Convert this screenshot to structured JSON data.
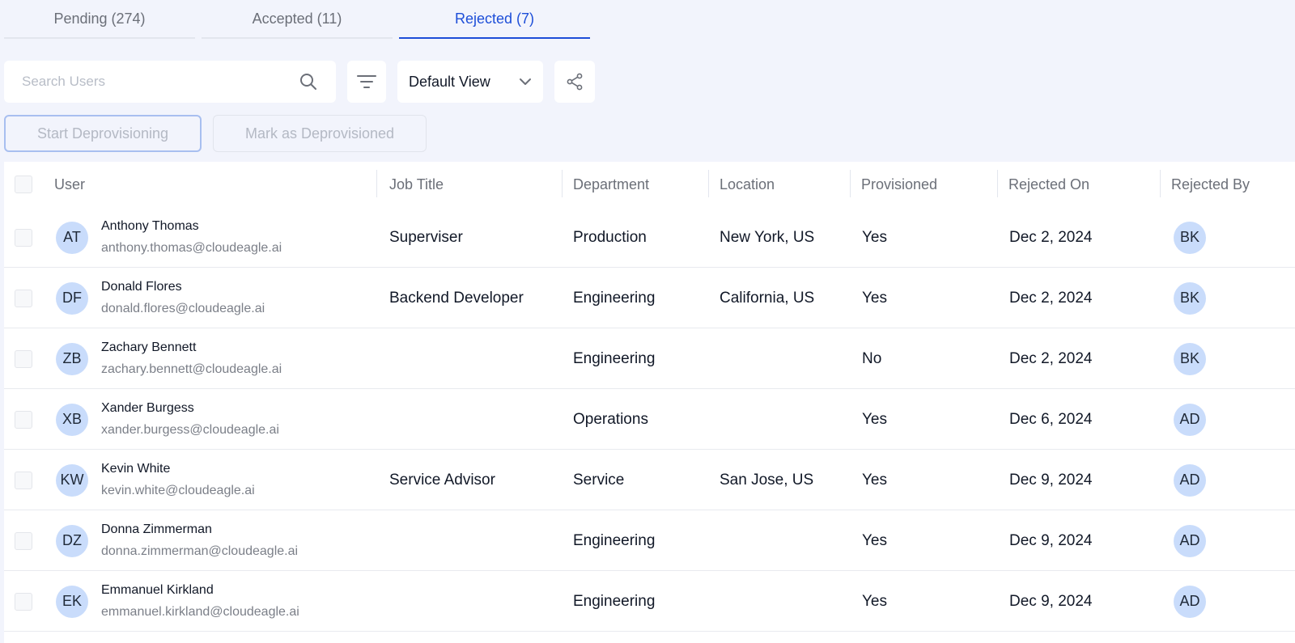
{
  "tabs": [
    {
      "label": "Pending (274)",
      "active": false
    },
    {
      "label": "Accepted (11)",
      "active": false
    },
    {
      "label": "Rejected (7)",
      "active": true
    }
  ],
  "toolbar": {
    "search_placeholder": "Search Users",
    "view_label": "Default View"
  },
  "actions": {
    "start_label": "Start Deprovisioning",
    "mark_label": "Mark as Deprovisioned"
  },
  "table": {
    "columns": [
      "User",
      "Job Title",
      "Department",
      "Location",
      "Provisioned",
      "Rejected On",
      "Rejected By"
    ],
    "rows": [
      {
        "initials": "AT",
        "name": "Anthony Thomas",
        "email": "anthony.thomas@cloudeagle.ai",
        "job_title": "Superviser",
        "department": "Production",
        "location": "New York, US",
        "provisioned": "Yes",
        "rejected_on": "Dec 2, 2024",
        "rejected_by": "BK"
      },
      {
        "initials": "DF",
        "name": "Donald Flores",
        "email": "donald.flores@cloudeagle.ai",
        "job_title": "Backend Developer",
        "department": "Engineering",
        "location": "California, US",
        "provisioned": "Yes",
        "rejected_on": "Dec 2, 2024",
        "rejected_by": "BK"
      },
      {
        "initials": "ZB",
        "name": "Zachary Bennett",
        "email": "zachary.bennett@cloudeagle.ai",
        "job_title": "",
        "department": "Engineering",
        "location": "",
        "provisioned": "No",
        "rejected_on": "Dec 2, 2024",
        "rejected_by": "BK"
      },
      {
        "initials": "XB",
        "name": "Xander Burgess",
        "email": "xander.burgess@cloudeagle.ai",
        "job_title": "",
        "department": "Operations",
        "location": "",
        "provisioned": "Yes",
        "rejected_on": "Dec 6, 2024",
        "rejected_by": "AD"
      },
      {
        "initials": "KW",
        "name": "Kevin White",
        "email": "kevin.white@cloudeagle.ai",
        "job_title": "Service Advisor",
        "department": "Service",
        "location": "San Jose, US",
        "provisioned": "Yes",
        "rejected_on": "Dec 9, 2024",
        "rejected_by": "AD"
      },
      {
        "initials": "DZ",
        "name": "Donna Zimmerman",
        "email": "donna.zimmerman@cloudeagle.ai",
        "job_title": "",
        "department": "Engineering",
        "location": "",
        "provisioned": "Yes",
        "rejected_on": "Dec 9, 2024",
        "rejected_by": "AD"
      },
      {
        "initials": "EK",
        "name": "Emmanuel Kirkland",
        "email": "emmanuel.kirkland@cloudeagle.ai",
        "job_title": "",
        "department": "Engineering",
        "location": "",
        "provisioned": "Yes",
        "rejected_on": "Dec 9, 2024",
        "rejected_by": "AD"
      }
    ]
  }
}
